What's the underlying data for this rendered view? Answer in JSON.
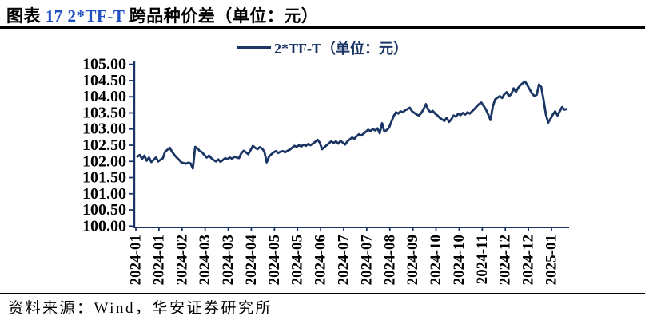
{
  "title": {
    "prefix": "图表",
    "number_part": "17 2*TF-T",
    "suffix": "跨品种价差（单位：元）",
    "accent_color": "#1E4FC2"
  },
  "legend": {
    "label": "2*TF-T（单位：元）"
  },
  "footer": {
    "source_text": "资料来源：Wind，华安证券研究所"
  },
  "chart_data": {
    "type": "line",
    "title": "2*TF-T 跨品种价差（单位：元）",
    "xlabel": "",
    "ylabel": "",
    "ylim": [
      100.0,
      105.0
    ],
    "y_tick_step": 0.5,
    "grid": false,
    "legend_position": "top-center",
    "line_color": "#1B3564",
    "axis_color": "#1B3564",
    "y_tick_labels": [
      "105.00",
      "104.50",
      "104.00",
      "103.50",
      "103.00",
      "102.50",
      "102.00",
      "101.50",
      "101.00",
      "100.50",
      "100.00"
    ],
    "x_tick_labels": [
      "2024-01",
      "2024-01",
      "2024-02",
      "2024-03",
      "2024-03",
      "2024-04",
      "2024-05",
      "2024-05",
      "2024-06",
      "2024-07",
      "2024-07",
      "2024-08",
      "2024-09",
      "2024-10",
      "2024-10",
      "2024-11",
      "2024-12",
      "2024-12",
      "2025-01"
    ],
    "series": [
      {
        "name": "2*TF-T（单位：元）",
        "values": [
          102.15,
          102.2,
          102.08,
          102.18,
          102.02,
          102.12,
          101.98,
          102.05,
          102.12,
          102.0,
          102.05,
          102.1,
          102.3,
          102.36,
          102.42,
          102.3,
          102.2,
          102.12,
          102.05,
          101.97,
          101.95,
          101.93,
          101.96,
          101.94,
          101.78,
          102.45,
          102.4,
          102.32,
          102.28,
          102.2,
          102.12,
          102.18,
          102.1,
          102.04,
          102.0,
          102.06,
          101.99,
          102.04,
          102.1,
          102.07,
          102.12,
          102.08,
          102.15,
          102.12,
          102.1,
          102.25,
          102.33,
          102.28,
          102.22,
          102.35,
          102.48,
          102.42,
          102.38,
          102.44,
          102.4,
          102.3,
          101.97,
          102.15,
          102.22,
          102.28,
          102.32,
          102.26,
          102.3,
          102.32,
          102.28,
          102.33,
          102.36,
          102.42,
          102.48,
          102.45,
          102.5,
          102.46,
          102.52,
          102.48,
          102.54,
          102.5,
          102.55,
          102.6,
          102.67,
          102.58,
          102.38,
          102.44,
          102.5,
          102.56,
          102.62,
          102.57,
          102.62,
          102.55,
          102.63,
          102.58,
          102.52,
          102.62,
          102.68,
          102.74,
          102.7,
          102.78,
          102.84,
          102.8,
          102.86,
          102.92,
          102.98,
          102.94,
          103.0,
          102.96,
          103.02,
          102.87,
          103.18,
          102.92,
          102.97,
          103.04,
          103.22,
          103.4,
          103.52,
          103.48,
          103.55,
          103.52,
          103.58,
          103.62,
          103.66,
          103.55,
          103.5,
          103.45,
          103.42,
          103.5,
          103.62,
          103.77,
          103.6,
          103.52,
          103.56,
          103.48,
          103.42,
          103.35,
          103.3,
          103.25,
          103.35,
          103.22,
          103.3,
          103.42,
          103.38,
          103.48,
          103.43,
          103.5,
          103.45,
          103.52,
          103.48,
          103.55,
          103.62,
          103.7,
          103.77,
          103.82,
          103.72,
          103.6,
          103.45,
          103.28,
          103.7,
          103.92,
          103.97,
          104.02,
          103.96,
          104.08,
          104.14,
          104.02,
          104.08,
          104.26,
          104.15,
          104.28,
          104.36,
          104.42,
          104.47,
          104.35,
          104.22,
          104.1,
          104.02,
          104.06,
          104.38,
          104.3,
          103.9,
          103.45,
          103.2,
          103.32,
          103.45,
          103.55,
          103.42,
          103.55,
          103.68,
          103.6,
          103.62
        ]
      }
    ]
  }
}
